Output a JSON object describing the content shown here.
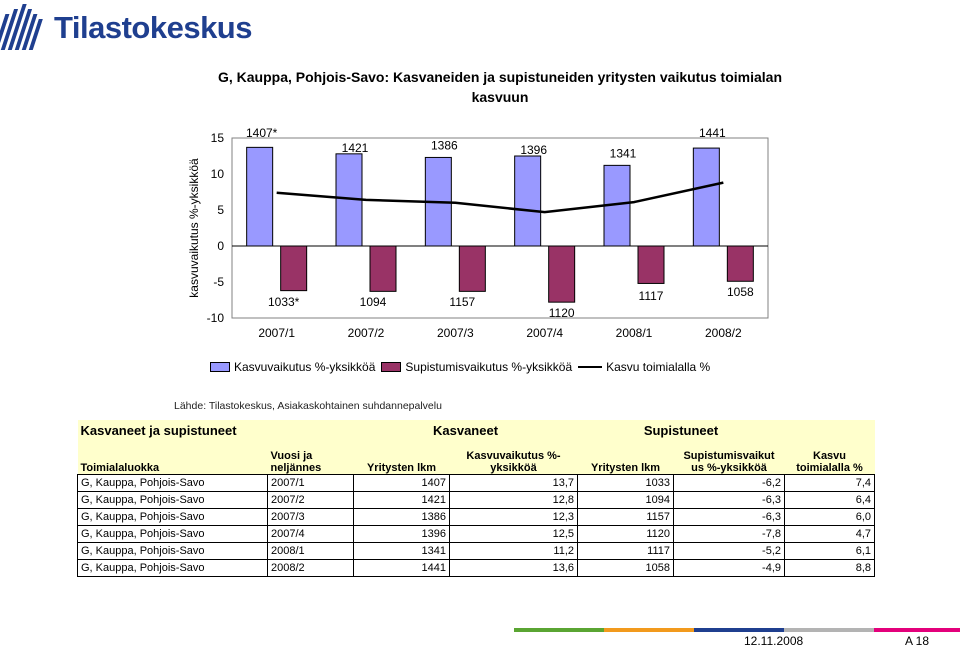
{
  "logo": {
    "text": "Tilastokeskus"
  },
  "chart_data": {
    "type": "bar",
    "title": "G, Kauppa, Pohjois-Savo: Kasvaneiden ja supistuneiden yritysten vaikutus toimialan kasvuun",
    "ylabel": "kasvuvaikutus %-yksikköä",
    "ylim": [
      -10,
      15
    ],
    "yticks": [
      15,
      10,
      5,
      0,
      -5,
      -10
    ],
    "categories": [
      "2007/1",
      "2007/2",
      "2007/3",
      "2007/4",
      "2008/1",
      "2008/2"
    ],
    "series": [
      {
        "name": "Kasvuvaikutus %-yksikköä",
        "type": "bar",
        "color": "#9999ff",
        "values": [
          13.7,
          12.8,
          12.3,
          12.5,
          11.2,
          13.6
        ],
        "labels": [
          "1407*",
          "1421",
          "1386",
          "1396",
          "1341",
          "1441"
        ]
      },
      {
        "name": "Supistumisvaikutus %-yksikköä",
        "type": "bar",
        "color": "#993366",
        "values": [
          -6.2,
          -6.3,
          -6.3,
          -7.8,
          -5.2,
          -4.9
        ],
        "labels": [
          "1033*",
          "1094",
          "1157",
          "1120",
          "1117",
          "1058"
        ]
      },
      {
        "name": "Kasvu toimialalla %",
        "type": "line",
        "color": "#000000",
        "values": [
          7.4,
          6.4,
          6.0,
          4.7,
          6.1,
          8.8
        ]
      }
    ]
  },
  "source": "Lähde: Tilastokeskus, Asiakaskohtainen suhdannepalvelu",
  "table": {
    "group_headers": {
      "main": "Kasvaneet ja supistuneet",
      "grown": "Kasvaneet",
      "shrunk": "Supistuneet"
    },
    "columns": [
      "Toimialaluokka",
      "Vuosi ja neljännes",
      "Yritysten lkm",
      "Kasvuvaikutus %-yksikköä",
      "Yritysten lkm",
      "Supistumisvaikutus %-yksikköä",
      "Kasvu toimialalla %"
    ],
    "header_lines": [
      [
        "Toimialaluokka"
      ],
      [
        "Vuosi ja",
        "neljännes"
      ],
      [
        "Yritysten lkm"
      ],
      [
        "Kasvuvaikutus %-",
        "yksikköä"
      ],
      [
        "Yritysten lkm"
      ],
      [
        "Supistumisvaikut",
        "us %-yksikköä"
      ],
      [
        "Kasvu",
        "toimialalla %"
      ]
    ],
    "rows": [
      [
        "G, Kauppa, Pohjois-Savo",
        "2007/1",
        "1407",
        "13,7",
        "1033",
        "-6,2",
        "7,4"
      ],
      [
        "G, Kauppa, Pohjois-Savo",
        "2007/2",
        "1421",
        "12,8",
        "1094",
        "-6,3",
        "6,4"
      ],
      [
        "G, Kauppa, Pohjois-Savo",
        "2007/3",
        "1386",
        "12,3",
        "1157",
        "-6,3",
        "6,0"
      ],
      [
        "G, Kauppa, Pohjois-Savo",
        "2007/4",
        "1396",
        "12,5",
        "1120",
        "-7,8",
        "4,7"
      ],
      [
        "G, Kauppa, Pohjois-Savo",
        "2008/1",
        "1341",
        "11,2",
        "1117",
        "-5,2",
        "6,1"
      ],
      [
        "G, Kauppa, Pohjois-Savo",
        "2008/2",
        "1441",
        "13,6",
        "1058",
        "-4,9",
        "8,8"
      ]
    ]
  },
  "footer": {
    "date": "12.11.2008",
    "page": "A 18"
  }
}
